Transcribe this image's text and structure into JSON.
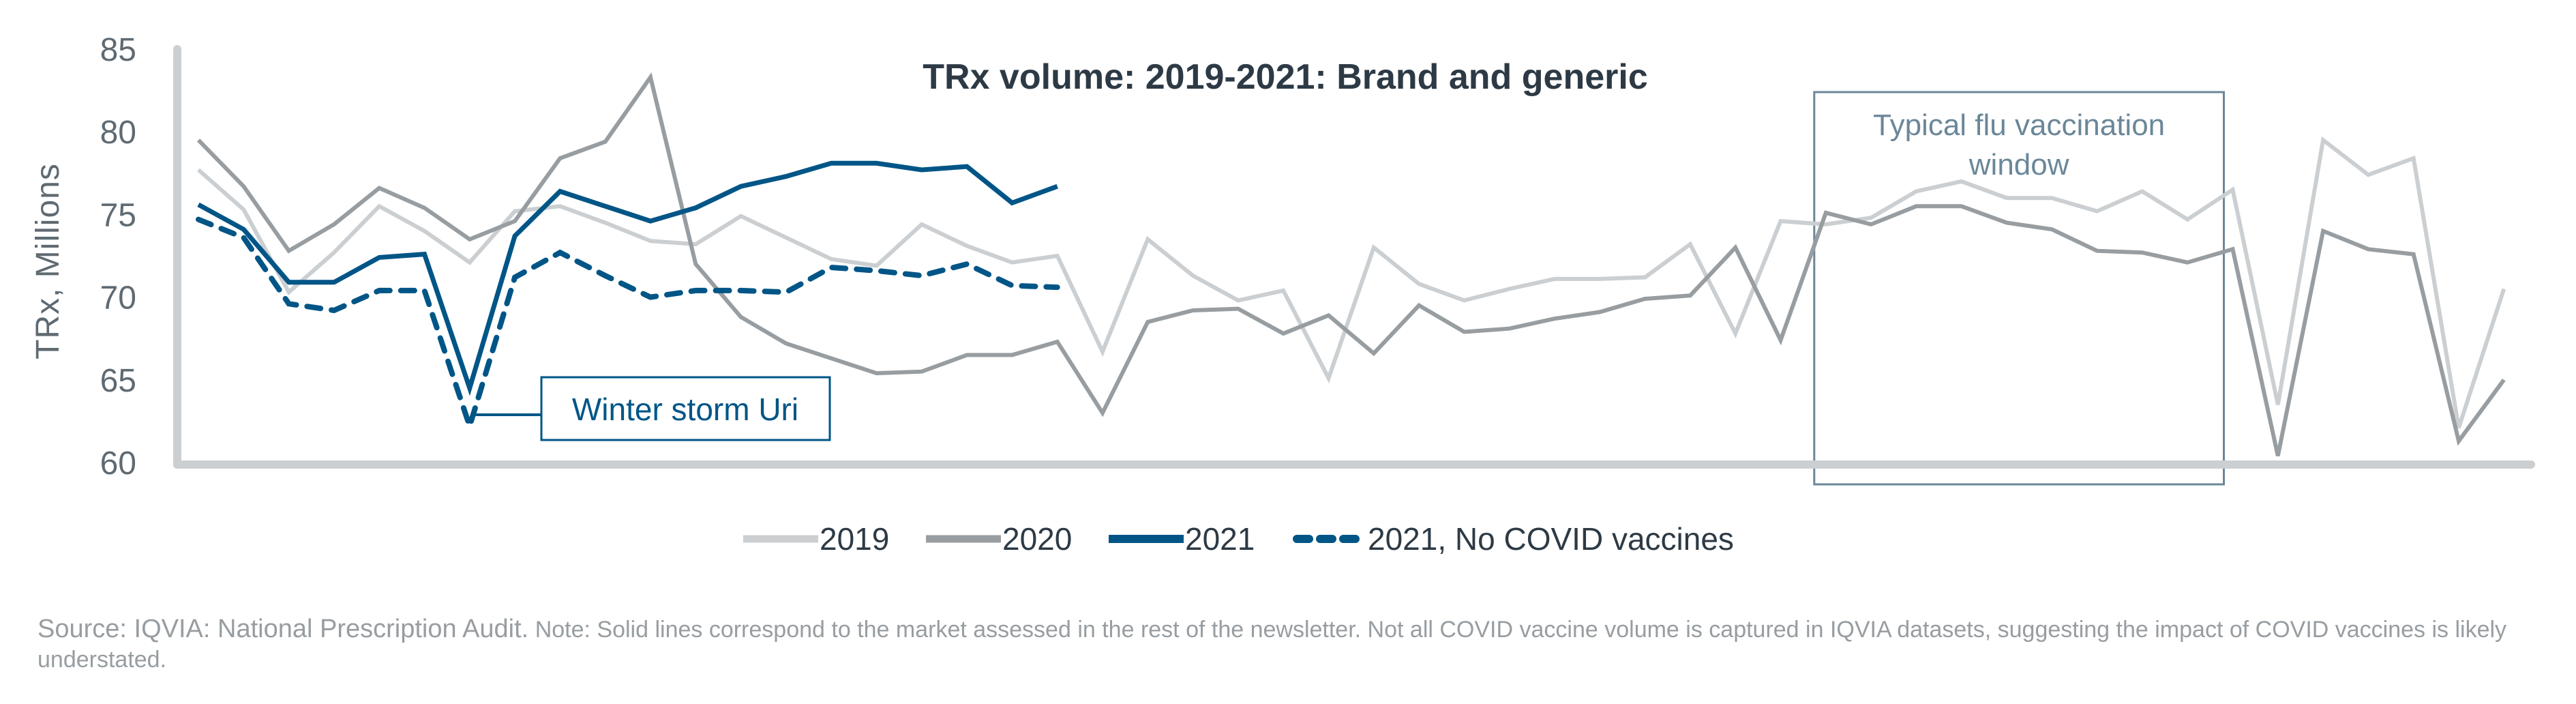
{
  "chart_data": {
    "type": "line",
    "title": "TRx volume: 2019-2021: Brand and generic",
    "xlabel": "",
    "ylabel": "TRx, Millions",
    "ylim": [
      60,
      85
    ],
    "yticks": [
      60,
      65,
      70,
      75,
      80,
      85
    ],
    "x_points": 52,
    "x_unit": "week",
    "grid": false,
    "legend_position": "bottom-center",
    "series": [
      {
        "name": "2019",
        "color": "#cbcfd2",
        "style": "solid",
        "values": [
          77.7,
          75.3,
          70.3,
          72.7,
          75.5,
          74.0,
          72.1,
          75.2,
          75.5,
          74.5,
          73.4,
          73.2,
          74.9,
          73.6,
          72.3,
          71.9,
          74.4,
          73.1,
          72.1,
          72.5,
          66.7,
          73.5,
          71.3,
          69.8,
          70.4,
          65.1,
          73.0,
          70.8,
          69.8,
          70.5,
          71.1,
          71.1,
          71.2,
          73.2,
          67.8,
          74.6,
          74.4,
          74.8,
          76.4,
          77.0,
          76.0,
          76.0,
          75.2,
          76.4,
          74.7,
          76.5,
          63.5,
          79.5,
          77.4,
          78.4,
          62.1,
          70.5
        ]
      },
      {
        "name": "2020",
        "color": "#979da1",
        "style": "solid",
        "values": [
          79.5,
          76.7,
          72.8,
          74.4,
          76.6,
          75.4,
          73.5,
          74.6,
          78.4,
          79.4,
          83.3,
          72.0,
          68.8,
          67.2,
          66.3,
          65.4,
          65.5,
          66.5,
          66.5,
          67.3,
          63.0,
          68.5,
          69.2,
          69.3,
          67.8,
          68.9,
          66.6,
          69.5,
          67.9,
          68.1,
          68.7,
          69.1,
          69.9,
          70.1,
          73.0,
          67.4,
          75.1,
          74.4,
          75.5,
          75.5,
          74.5,
          74.1,
          72.8,
          72.7,
          72.1,
          72.9,
          60.4,
          74.0,
          72.9,
          72.6,
          61.3,
          65.0
        ]
      },
      {
        "name": "2021",
        "color": "#005587",
        "style": "solid",
        "values": [
          75.6,
          74.1,
          70.9,
          70.9,
          72.4,
          72.6,
          64.5,
          73.7,
          76.4,
          75.5,
          74.6,
          75.4,
          76.7,
          77.3,
          78.1,
          78.1,
          77.7,
          77.9,
          75.7,
          76.7
        ]
      },
      {
        "name": "2021, No COVID vaccines",
        "color": "#005587",
        "style": "dashed",
        "values": [
          74.7,
          73.6,
          69.6,
          69.2,
          70.4,
          70.4,
          62.2,
          71.2,
          72.7,
          71.3,
          70.0,
          70.4,
          70.4,
          70.3,
          71.8,
          71.6,
          71.3,
          72.0,
          70.7,
          70.6
        ]
      }
    ],
    "annotations": [
      {
        "id": "uri",
        "text": "Winter storm Uri",
        "point_index": 6,
        "color": "#005587"
      },
      {
        "id": "flu",
        "text_lines": [
          "Typical flu vaccination",
          "window"
        ],
        "start_index": 36,
        "end_index": 45,
        "color": "#6b8799"
      }
    ]
  },
  "axis_color": "#cbcfd2",
  "footnote": {
    "source": "Source: IQVIA: National Prescription Audit.",
    "note": " Note: Solid lines correspond to the market assessed in the rest of the newsletter. Not all COVID vaccine volume is captured in IQVIA datasets, suggesting the impact of COVID vaccines is likely understated."
  }
}
